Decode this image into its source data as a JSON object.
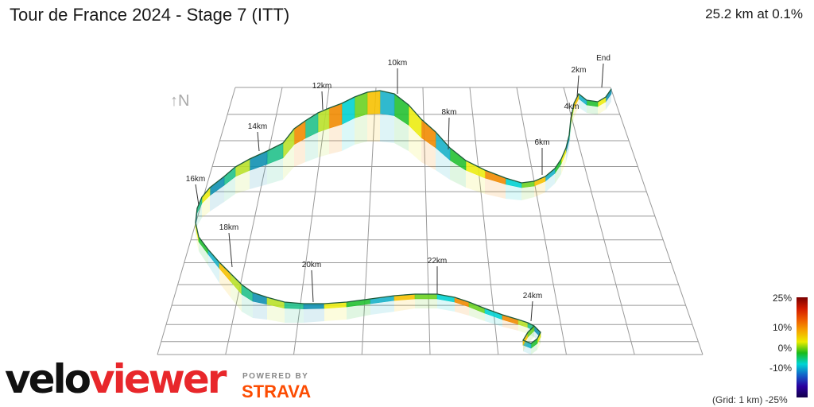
{
  "header": {
    "title": "Tour de France 2024 - Stage 7 (ITT)",
    "summary": "25.2 km at 0.1%"
  },
  "chart_data": {
    "type": "3d-route-elevation",
    "distance_km": 25.2,
    "avg_gradient_pct": 0.1,
    "markers": [
      {
        "label": "End"
      },
      {
        "label": "2km"
      },
      {
        "label": "4km"
      },
      {
        "label": "6km"
      },
      {
        "label": "8km"
      },
      {
        "label": "10km"
      },
      {
        "label": "12km"
      },
      {
        "label": "14km"
      },
      {
        "label": "16km"
      },
      {
        "label": "18km"
      },
      {
        "label": "20km"
      },
      {
        "label": "22km"
      },
      {
        "label": "24km"
      }
    ],
    "gradient_legend": {
      "ticks": [
        "25%",
        "10%",
        "0%",
        "-10%",
        "(Grid: 1 km) -25%"
      ],
      "colors": [
        "#7a0000",
        "#d21a00",
        "#ee5a00",
        "#f6a400",
        "#ecec00",
        "#19bb19",
        "#00d4d4",
        "#1360c8",
        "#2a00a0",
        "#13004a"
      ]
    },
    "grid_spacing": "1 km"
  },
  "branding": {
    "logo_part1": "velo",
    "logo_part2": "viewer",
    "powered_by": "POWERED BY",
    "strava": "STRAVA"
  },
  "compass": "↑N"
}
